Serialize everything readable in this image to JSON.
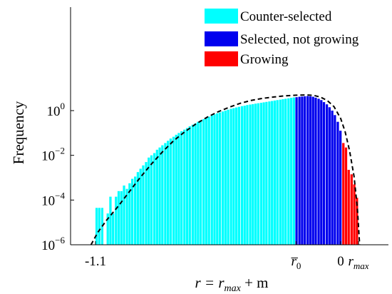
{
  "chart_data": {
    "type": "bar",
    "y_scale": "log",
    "ylabel": "Frequency",
    "xlabel": {
      "main": "r = r",
      "sub1": "max",
      "rest": " + m"
    },
    "yticks": [
      {
        "base": "10",
        "exp": "0",
        "value": 1
      },
      {
        "base": "10",
        "exp": "−2",
        "value": 0.01
      },
      {
        "base": "10",
        "exp": "−4",
        "value": 0.0001
      },
      {
        "base": "10",
        "exp": "−6",
        "value": 1e-06
      }
    ],
    "xticks": [
      {
        "label": "-1.1",
        "value": -1.1
      },
      {
        "label": "r̅",
        "sub": "0",
        "value": -0.2
      },
      {
        "label": "0",
        "value": 0
      },
      {
        "label": "r",
        "sub": "max",
        "value": 0.08
      }
    ],
    "xlim": [
      -1.2,
      0.1
    ],
    "ylim_log10": [
      -6,
      2.2
    ],
    "colors": {
      "counter": "#00ffff",
      "selected": "#0000ee",
      "growing": "#ff0000",
      "curve": "#000000"
    },
    "series": [
      {
        "name": "Counter-selected",
        "color": "#00ffff",
        "bins": [
          [
            -1.095,
            -4.35
          ],
          [
            -1.083,
            -4.35
          ],
          [
            -1.07,
            -4.35
          ],
          [
            -1.045,
            -4.6
          ],
          [
            -1.033,
            -3.85
          ],
          [
            -1.021,
            -4.6
          ],
          [
            -1.008,
            -3.85
          ],
          [
            -0.996,
            -3.6
          ],
          [
            -0.984,
            -3.6
          ],
          [
            -0.972,
            -3.35
          ],
          [
            -0.959,
            -3.5
          ],
          [
            -0.947,
            -3.25
          ],
          [
            -0.935,
            -3.05
          ],
          [
            -0.922,
            -2.95
          ],
          [
            -0.91,
            -2.75
          ],
          [
            -0.898,
            -2.6
          ],
          [
            -0.886,
            -2.45
          ],
          [
            -0.873,
            -2.3
          ],
          [
            -0.861,
            -2.1
          ],
          [
            -0.849,
            -2.0
          ],
          [
            -0.836,
            -1.9
          ],
          [
            -0.824,
            -1.75
          ],
          [
            -0.812,
            -1.65
          ],
          [
            -0.8,
            -1.55
          ],
          [
            -0.787,
            -1.45
          ],
          [
            -0.775,
            -1.35
          ],
          [
            -0.763,
            -1.25
          ],
          [
            -0.75,
            -1.17
          ],
          [
            -0.738,
            -1.08
          ],
          [
            -0.726,
            -1.0
          ],
          [
            -0.714,
            -0.92
          ],
          [
            -0.701,
            -0.85
          ],
          [
            -0.689,
            -0.78
          ],
          [
            -0.677,
            -0.7
          ],
          [
            -0.664,
            -0.63
          ],
          [
            -0.652,
            -0.57
          ],
          [
            -0.64,
            -0.5
          ],
          [
            -0.628,
            -0.44
          ],
          [
            -0.615,
            -0.38
          ],
          [
            -0.603,
            -0.33
          ],
          [
            -0.591,
            -0.27
          ],
          [
            -0.578,
            -0.22
          ],
          [
            -0.566,
            -0.17
          ],
          [
            -0.554,
            -0.12
          ],
          [
            -0.542,
            -0.08
          ],
          [
            -0.529,
            -0.04
          ],
          [
            -0.517,
            0.0
          ],
          [
            -0.505,
            0.04
          ],
          [
            -0.492,
            0.08
          ],
          [
            -0.48,
            0.11
          ],
          [
            -0.468,
            0.14
          ],
          [
            -0.456,
            0.17
          ],
          [
            -0.443,
            0.2
          ],
          [
            -0.431,
            0.22
          ],
          [
            -0.419,
            0.25
          ],
          [
            -0.406,
            0.27
          ],
          [
            -0.394,
            0.29
          ],
          [
            -0.382,
            0.31
          ],
          [
            -0.37,
            0.33
          ],
          [
            -0.357,
            0.35
          ],
          [
            -0.345,
            0.37
          ],
          [
            -0.333,
            0.39
          ],
          [
            -0.32,
            0.41
          ],
          [
            -0.308,
            0.43
          ],
          [
            -0.296,
            0.45
          ],
          [
            -0.284,
            0.47
          ],
          [
            -0.271,
            0.49
          ],
          [
            -0.259,
            0.51
          ],
          [
            -0.247,
            0.53
          ],
          [
            -0.234,
            0.55
          ],
          [
            -0.222,
            0.57
          ],
          [
            -0.21,
            0.59
          ]
        ]
      },
      {
        "name": "Selected, not growing",
        "color": "#0000ee",
        "bins": [
          [
            -0.198,
            0.6
          ],
          [
            -0.185,
            0.62
          ],
          [
            -0.173,
            0.63
          ],
          [
            -0.161,
            0.64
          ],
          [
            -0.148,
            0.65
          ],
          [
            -0.136,
            0.64
          ],
          [
            -0.124,
            0.62
          ],
          [
            -0.112,
            0.58
          ],
          [
            -0.099,
            0.53
          ],
          [
            -0.087,
            0.47
          ],
          [
            -0.075,
            0.38
          ],
          [
            -0.062,
            0.28
          ],
          [
            -0.05,
            0.15
          ],
          [
            -0.038,
            0.0
          ],
          [
            -0.026,
            -0.2
          ],
          [
            -0.013,
            -0.5
          ],
          [
            -0.001,
            -0.9
          ]
        ]
      },
      {
        "name": "Growing",
        "color": "#ff0000",
        "bins": [
          [
            0.012,
            -1.45
          ],
          [
            0.024,
            -1.65
          ],
          [
            0.036,
            -2.65
          ],
          [
            0.049,
            -2.85
          ],
          [
            0.061,
            -3.3
          ],
          [
            0.073,
            -3.9
          ]
        ]
      }
    ],
    "curve_points": [
      [
        -1.12,
        -6.0
      ],
      [
        -1.09,
        -5.45
      ],
      [
        -1.05,
        -4.9
      ],
      [
        -1.0,
        -4.3
      ],
      [
        -0.95,
        -3.65
      ],
      [
        -0.9,
        -3.0
      ],
      [
        -0.85,
        -2.4
      ],
      [
        -0.8,
        -1.85
      ],
      [
        -0.75,
        -1.35
      ],
      [
        -0.7,
        -0.95
      ],
      [
        -0.65,
        -0.6
      ],
      [
        -0.6,
        -0.3
      ],
      [
        -0.55,
        -0.05
      ],
      [
        -0.5,
        0.15
      ],
      [
        -0.45,
        0.33
      ],
      [
        -0.4,
        0.46
      ],
      [
        -0.35,
        0.55
      ],
      [
        -0.3,
        0.61
      ],
      [
        -0.25,
        0.66
      ],
      [
        -0.2,
        0.69
      ],
      [
        -0.15,
        0.7
      ],
      [
        -0.12,
        0.68
      ],
      [
        -0.09,
        0.6
      ],
      [
        -0.06,
        0.45
      ],
      [
        -0.03,
        0.18
      ],
      [
        0.0,
        -0.35
      ],
      [
        0.02,
        -0.95
      ],
      [
        0.04,
        -1.8
      ],
      [
        0.06,
        -2.95
      ],
      [
        0.075,
        -4.4
      ],
      [
        0.085,
        -6.0
      ]
    ]
  }
}
